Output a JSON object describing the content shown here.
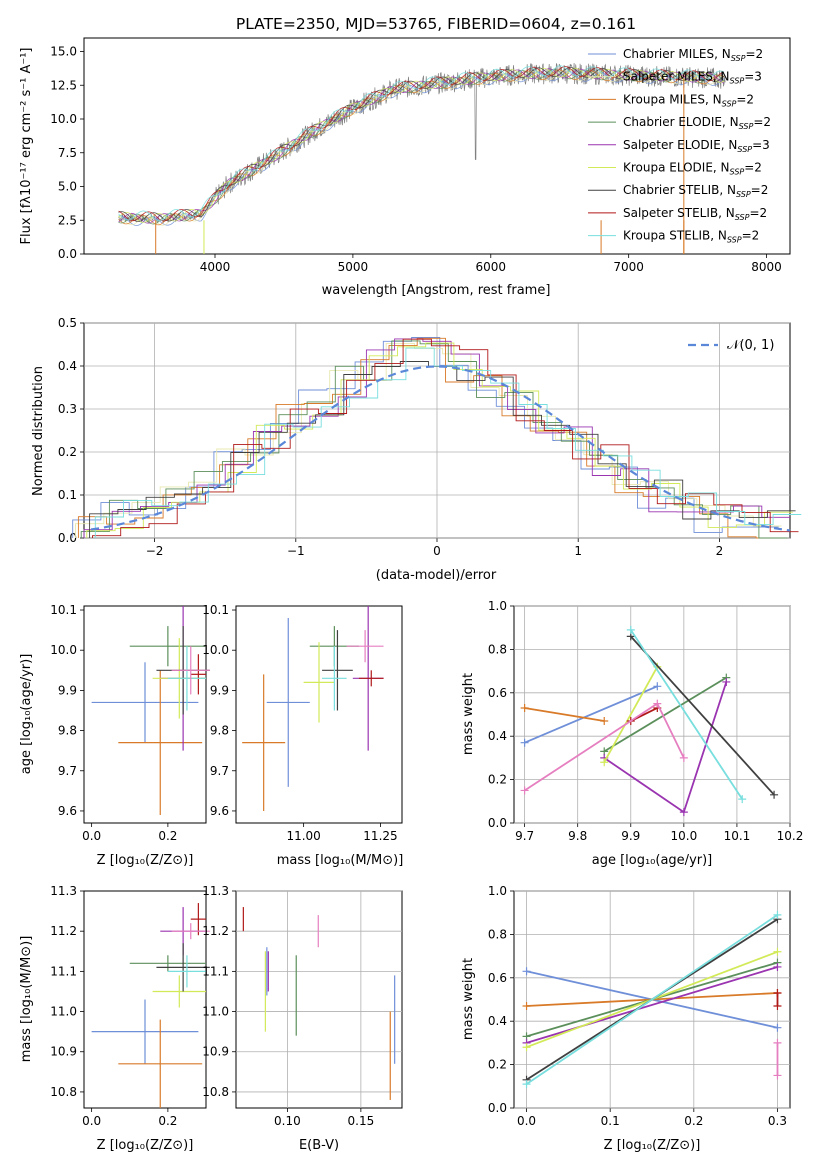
{
  "chart_data": [
    {
      "type": "line",
      "title": "PLATE=2350, MJD=53765, FIBERID=0604, z=0.161",
      "xlabel": "wavelength [Angstrom, rest frame]",
      "ylabel": "Flux [fλ10⁻¹⁷ erg cm⁻² s⁻¹ A⁻¹]",
      "xlim": [
        3050,
        8170
      ],
      "ylim": [
        0,
        16
      ],
      "xticks": [
        "4000",
        "5000",
        "6000",
        "7000",
        "8000"
      ],
      "yticks": [
        "0.0",
        "2.5",
        "5.0",
        "7.5",
        "10.0",
        "12.5",
        "15.0"
      ],
      "data_color": "#808080",
      "continuum": {
        "x": [
          3300,
          3600,
          3900,
          4100,
          4400,
          4700,
          5000,
          5300,
          5600,
          5900,
          6200,
          6500,
          6800,
          7100,
          7400,
          7700
        ],
        "y": [
          2.7,
          2.6,
          3.0,
          5.2,
          7.0,
          9.0,
          10.8,
          12.2,
          12.6,
          13.0,
          13.3,
          13.4,
          13.3,
          13.2,
          13.1,
          13.0
        ]
      },
      "legend_position": "upper-right",
      "series": [
        {
          "name": "Chabrier MILES, N_SSP=2",
          "color": "#6f8fd8"
        },
        {
          "name": "Salpeter MILES, N_SSP=3",
          "color": "#e8e8b0"
        },
        {
          "name": "Kroupa MILES, N_SSP=2",
          "color": "#d87a28"
        },
        {
          "name": "Chabrier ELODIE, N_SSP=2",
          "color": "#5b8f5b"
        },
        {
          "name": "Salpeter ELODIE, N_SSP=3",
          "color": "#9a34b0"
        },
        {
          "name": "Kroupa ELODIE, N_SSP=2",
          "color": "#d2ea58"
        },
        {
          "name": "Chabrier STELIB, N_SSP=2",
          "color": "#404040"
        },
        {
          "name": "Salpeter STELIB, N_SSP=2",
          "color": "#b01818"
        },
        {
          "name": "Kroupa STELIB, N_SSP=2",
          "color": "#78dede"
        }
      ]
    },
    {
      "type": "line",
      "xlabel": "(data-model)/error",
      "ylabel": "Normed distribution",
      "xlim": [
        -2.5,
        2.5
      ],
      "ylim": [
        0,
        0.5
      ],
      "xticks": [
        "−2",
        "−1",
        "0",
        "1",
        "2"
      ],
      "yticks": [
        "0.0",
        "0.1",
        "0.2",
        "0.3",
        "0.4",
        "0.5"
      ],
      "grid": true,
      "reference_curve": {
        "name": "𝒩(0, 1)",
        "mean": 0,
        "sigma": 1,
        "color": "#5b87d8"
      },
      "legend_position": "upper-right",
      "histogram_edges": [
        -2.5,
        -2.3,
        -2.1,
        -1.9,
        -1.7,
        -1.5,
        -1.3,
        -1.1,
        -0.9,
        -0.7,
        -0.5,
        -0.3,
        -0.1,
        0.1,
        0.3,
        0.5,
        0.7,
        0.9,
        1.1,
        1.3,
        1.5,
        1.7,
        1.9,
        2.1,
        2.3,
        2.5
      ],
      "histogram_base": [
        0.03,
        0.05,
        0.07,
        0.1,
        0.14,
        0.18,
        0.23,
        0.28,
        0.32,
        0.36,
        0.4,
        0.43,
        0.43,
        0.4,
        0.36,
        0.31,
        0.26,
        0.22,
        0.18,
        0.14,
        0.1,
        0.07,
        0.05,
        0.04,
        0.03
      ]
    },
    {
      "type": "scatter",
      "xlabel": "Z [log₁₀(Z/Z⊙)]",
      "ylabel": "age  [log₁₀(age/yr)]",
      "xlim": [
        -0.02,
        0.3
      ],
      "ylim": [
        9.57,
        10.11
      ],
      "xticks": [
        {
          "v": 0.0,
          "t": "0.0"
        },
        {
          "v": 0.2,
          "t": "0.2"
        }
      ],
      "yticks": [
        {
          "v": 9.6,
          "t": "9.6"
        },
        {
          "v": 9.7,
          "t": "9.7"
        },
        {
          "v": 9.8,
          "t": "9.8"
        },
        {
          "v": 9.9,
          "t": "9.9"
        },
        {
          "v": 10.0,
          "t": "10.0"
        },
        {
          "v": 10.1,
          "t": "10.1"
        }
      ],
      "errorbars": [
        {
          "x": 0.14,
          "xerr": 0.14,
          "y": 9.87,
          "yerr": 0.1,
          "color": "#6f8fd8"
        },
        {
          "x": 0.18,
          "xerr": 0.11,
          "y": 9.77,
          "yerr": 0.18,
          "color": "#d87a28"
        },
        {
          "x": 0.2,
          "xerr": 0.1,
          "y": 10.01,
          "yerr": 0.05,
          "color": "#5b8f5b"
        },
        {
          "x": 0.24,
          "xerr": 0.06,
          "y": 9.93,
          "yerr": 0.18,
          "color": "#9a34b0"
        },
        {
          "x": 0.23,
          "xerr": 0.07,
          "y": 9.93,
          "yerr": 0.1,
          "color": "#d2ea58"
        },
        {
          "x": 0.24,
          "xerr": 0.07,
          "y": 9.95,
          "yerr": 0.11,
          "color": "#404040"
        },
        {
          "x": 0.28,
          "xerr": 0.02,
          "y": 9.94,
          "yerr": 0.05,
          "color": "#b01818"
        },
        {
          "x": 0.25,
          "xerr": 0.05,
          "y": 9.93,
          "yerr": 0.08,
          "color": "#78dede"
        },
        {
          "x": 0.26,
          "xerr": 0.05,
          "y": 9.95,
          "yerr": 0.06,
          "color": "#e67fc0"
        }
      ]
    },
    {
      "type": "scatter",
      "xlabel": "mass [log₁₀(M/M⊙)]",
      "xlim": [
        10.78,
        11.32
      ],
      "ylim": [
        9.57,
        10.11
      ],
      "xticks": [
        {
          "v": 11.0,
          "t": "11.00"
        },
        {
          "v": 11.25,
          "t": "11.25"
        }
      ],
      "yticks": [
        {
          "v": 9.6,
          "t": "9.6"
        },
        {
          "v": 9.7,
          "t": "9.7"
        },
        {
          "v": 9.8,
          "t": "9.8"
        },
        {
          "v": 9.9,
          "t": "9.9"
        },
        {
          "v": 10.0,
          "t": "10.0"
        },
        {
          "v": 10.1,
          "t": "10.1"
        }
      ],
      "errorbars": [
        {
          "x": 10.95,
          "xerr": 0.07,
          "y": 9.87,
          "yerr": 0.21,
          "color": "#6f8fd8"
        },
        {
          "x": 10.87,
          "xerr": 0.07,
          "y": 9.77,
          "yerr": 0.17,
          "color": "#d87a28"
        },
        {
          "x": 11.1,
          "xerr": 0.08,
          "y": 10.01,
          "yerr": 0.05,
          "color": "#5b8f5b"
        },
        {
          "x": 11.21,
          "xerr": 0.05,
          "y": 9.93,
          "yerr": 0.18,
          "color": "#9a34b0"
        },
        {
          "x": 11.05,
          "xerr": 0.05,
          "y": 9.92,
          "yerr": 0.1,
          "color": "#d2ea58"
        },
        {
          "x": 11.11,
          "xerr": 0.05,
          "y": 9.95,
          "yerr": 0.1,
          "color": "#404040"
        },
        {
          "x": 11.22,
          "xerr": 0.04,
          "y": 9.93,
          "yerr": 0.02,
          "color": "#b01818"
        },
        {
          "x": 11.1,
          "xerr": 0.04,
          "y": 9.93,
          "yerr": 0.08,
          "color": "#78dede"
        },
        {
          "x": 11.2,
          "xerr": 0.06,
          "y": 10.01,
          "yerr": 0.04,
          "color": "#e67fc0"
        }
      ]
    },
    {
      "type": "line",
      "xlabel": "age  [log₁₀(age/yr)]",
      "ylabel": "mass weight",
      "xlim": [
        9.68,
        10.2
      ],
      "ylim": [
        0,
        1
      ],
      "grid": true,
      "xticks": [
        {
          "v": 9.7,
          "t": "9.7"
        },
        {
          "v": 9.8,
          "t": "9.8"
        },
        {
          "v": 9.9,
          "t": "9.9"
        },
        {
          "v": 10.0,
          "t": "10.0"
        },
        {
          "v": 10.1,
          "t": "10.1"
        },
        {
          "v": 10.2,
          "t": "10.2"
        }
      ],
      "yticks": [
        {
          "v": 0.0,
          "t": "0.0"
        },
        {
          "v": 0.2,
          "t": "0.2"
        },
        {
          "v": 0.4,
          "t": "0.4"
        },
        {
          "v": 0.6,
          "t": "0.6"
        },
        {
          "v": 0.8,
          "t": "0.8"
        },
        {
          "v": 1.0,
          "t": "1.0"
        }
      ],
      "series": [
        {
          "color": "#6f8fd8",
          "x": [
            9.7,
            9.95
          ],
          "y": [
            0.37,
            0.63
          ]
        },
        {
          "color": "#d87a28",
          "x": [
            9.7,
            9.85
          ],
          "y": [
            0.53,
            0.47
          ]
        },
        {
          "color": "#5b8f5b",
          "x": [
            9.85,
            10.08
          ],
          "y": [
            0.33,
            0.67
          ]
        },
        {
          "color": "#9a34b0",
          "x": [
            9.85,
            10.0,
            10.08
          ],
          "y": [
            0.3,
            0.05,
            0.65
          ]
        },
        {
          "color": "#d2ea58",
          "x": [
            9.85,
            9.95
          ],
          "y": [
            0.28,
            0.72
          ]
        },
        {
          "color": "#404040",
          "x": [
            9.9,
            10.17
          ],
          "y": [
            0.86,
            0.13
          ]
        },
        {
          "color": "#b01818",
          "x": [
            9.9,
            9.95
          ],
          "y": [
            0.47,
            0.53
          ]
        },
        {
          "color": "#78dede",
          "x": [
            9.9,
            10.11
          ],
          "y": [
            0.89,
            0.11
          ]
        },
        {
          "color": "#e67fc0",
          "x": [
            9.7,
            9.95,
            10.0
          ],
          "y": [
            0.15,
            0.55,
            0.3
          ]
        }
      ]
    },
    {
      "type": "scatter",
      "xlabel": "Z [log₁₀(Z/Z⊙)]",
      "ylabel": "mass [log₁₀(M/M⊙)]",
      "xlim": [
        -0.02,
        0.3
      ],
      "ylim": [
        10.76,
        11.3
      ],
      "xticks": [
        {
          "v": 0.0,
          "t": "0.0"
        },
        {
          "v": 0.2,
          "t": "0.2"
        }
      ],
      "yticks": [
        {
          "v": 10.8,
          "t": "10.8"
        },
        {
          "v": 10.9,
          "t": "10.9"
        },
        {
          "v": 11.0,
          "t": "11.0"
        },
        {
          "v": 11.1,
          "t": "11.1"
        },
        {
          "v": 11.2,
          "t": "11.2"
        },
        {
          "v": 11.3,
          "t": "11.3"
        }
      ],
      "errorbars": [
        {
          "x": 0.14,
          "xerr": 0.14,
          "y": 10.95,
          "yerr": 0.08,
          "color": "#6f8fd8"
        },
        {
          "x": 0.18,
          "xerr": 0.11,
          "y": 10.87,
          "yerr": 0.11,
          "color": "#d87a28"
        },
        {
          "x": 0.2,
          "xerr": 0.1,
          "y": 11.12,
          "yerr": 0.02,
          "color": "#5b8f5b"
        },
        {
          "x": 0.24,
          "xerr": 0.06,
          "y": 11.2,
          "yerr": 0.06,
          "color": "#9a34b0"
        },
        {
          "x": 0.23,
          "xerr": 0.07,
          "y": 11.05,
          "yerr": 0.04,
          "color": "#d2ea58"
        },
        {
          "x": 0.24,
          "xerr": 0.07,
          "y": 11.11,
          "yerr": 0.06,
          "color": "#404040"
        },
        {
          "x": 0.28,
          "xerr": 0.02,
          "y": 11.23,
          "yerr": 0.04,
          "color": "#b01818"
        },
        {
          "x": 0.25,
          "xerr": 0.05,
          "y": 11.1,
          "yerr": 0.04,
          "color": "#78dede"
        },
        {
          "x": 0.26,
          "xerr": 0.05,
          "y": 11.2,
          "yerr": 0.02,
          "color": "#e67fc0"
        }
      ]
    },
    {
      "type": "scatter",
      "xlabel": "E(B-V)",
      "xlim": [
        0.065,
        0.178
      ],
      "ylim": [
        10.76,
        11.3
      ],
      "grid": true,
      "xticks": [
        {
          "v": 0.1,
          "t": "0.10"
        },
        {
          "v": 0.15,
          "t": "0.15"
        }
      ],
      "yticks": [
        {
          "v": 10.8,
          "t": "10.8"
        },
        {
          "v": 10.9,
          "t": "10.9"
        },
        {
          "v": 11.0,
          "t": "11.0"
        },
        {
          "v": 11.1,
          "t": "11.1"
        },
        {
          "v": 11.2,
          "t": "11.2"
        },
        {
          "v": 11.3,
          "t": "11.3"
        }
      ],
      "errorbars": [
        {
          "x": 0.085,
          "xerr": 0,
          "y": 11.05,
          "yerr": 0.1,
          "color": "#d2ea58"
        },
        {
          "x": 0.086,
          "xerr": 0,
          "y": 11.1,
          "yerr": 0.06,
          "color": "#6f8fd8"
        },
        {
          "x": 0.087,
          "xerr": 0,
          "y": 11.1,
          "yerr": 0.05,
          "color": "#9a34b0"
        },
        {
          "x": 0.07,
          "xerr": 0,
          "y": 11.23,
          "yerr": 0.03,
          "color": "#b01818"
        },
        {
          "x": 0.106,
          "xerr": 0,
          "y": 11.04,
          "yerr": 0.1,
          "color": "#5b8f5b"
        },
        {
          "x": 0.121,
          "xerr": 0,
          "y": 11.2,
          "yerr": 0.04,
          "color": "#e67fc0"
        },
        {
          "x": 0.17,
          "xerr": 0,
          "y": 10.89,
          "yerr": 0.11,
          "color": "#d87a28"
        },
        {
          "x": 0.173,
          "xerr": 0,
          "y": 10.98,
          "yerr": 0.11,
          "color": "#6f8fd8"
        }
      ]
    },
    {
      "type": "line",
      "xlabel": "Z [log₁₀(Z/Z⊙)]",
      "ylabel": "mass weight",
      "xlim": [
        -0.015,
        0.315
      ],
      "ylim": [
        0,
        1
      ],
      "grid": true,
      "xticks": [
        {
          "v": 0.0,
          "t": "0.0"
        },
        {
          "v": 0.1,
          "t": "0.1"
        },
        {
          "v": 0.2,
          "t": "0.2"
        },
        {
          "v": 0.3,
          "t": "0.3"
        }
      ],
      "yticks": [
        {
          "v": 0.0,
          "t": "0.0"
        },
        {
          "v": 0.2,
          "t": "0.2"
        },
        {
          "v": 0.4,
          "t": "0.4"
        },
        {
          "v": 0.6,
          "t": "0.6"
        },
        {
          "v": 0.8,
          "t": "0.8"
        },
        {
          "v": 1.0,
          "t": "1.0"
        }
      ],
      "series": [
        {
          "color": "#6f8fd8",
          "x": [
            0.0,
            0.3
          ],
          "y": [
            0.63,
            0.37
          ]
        },
        {
          "color": "#d87a28",
          "x": [
            0.0,
            0.3
          ],
          "y": [
            0.47,
            0.53
          ]
        },
        {
          "color": "#5b8f5b",
          "x": [
            0.0,
            0.3
          ],
          "y": [
            0.33,
            0.67
          ]
        },
        {
          "color": "#9a34b0",
          "x": [
            0.0,
            0.3
          ],
          "y": [
            0.3,
            0.65
          ]
        },
        {
          "color": "#d2ea58",
          "x": [
            0.0,
            0.3
          ],
          "y": [
            0.28,
            0.72
          ]
        },
        {
          "color": "#404040",
          "x": [
            0.0,
            0.3
          ],
          "y": [
            0.13,
            0.87
          ]
        },
        {
          "color": "#b01818",
          "x": [
            0.3,
            0.3
          ],
          "y": [
            0.47,
            0.53
          ]
        },
        {
          "color": "#78dede",
          "x": [
            0.0,
            0.3
          ],
          "y": [
            0.11,
            0.89
          ]
        },
        {
          "color": "#e67fc0",
          "x": [
            0.3,
            0.3
          ],
          "y": [
            0.15,
            0.3
          ]
        }
      ]
    }
  ]
}
